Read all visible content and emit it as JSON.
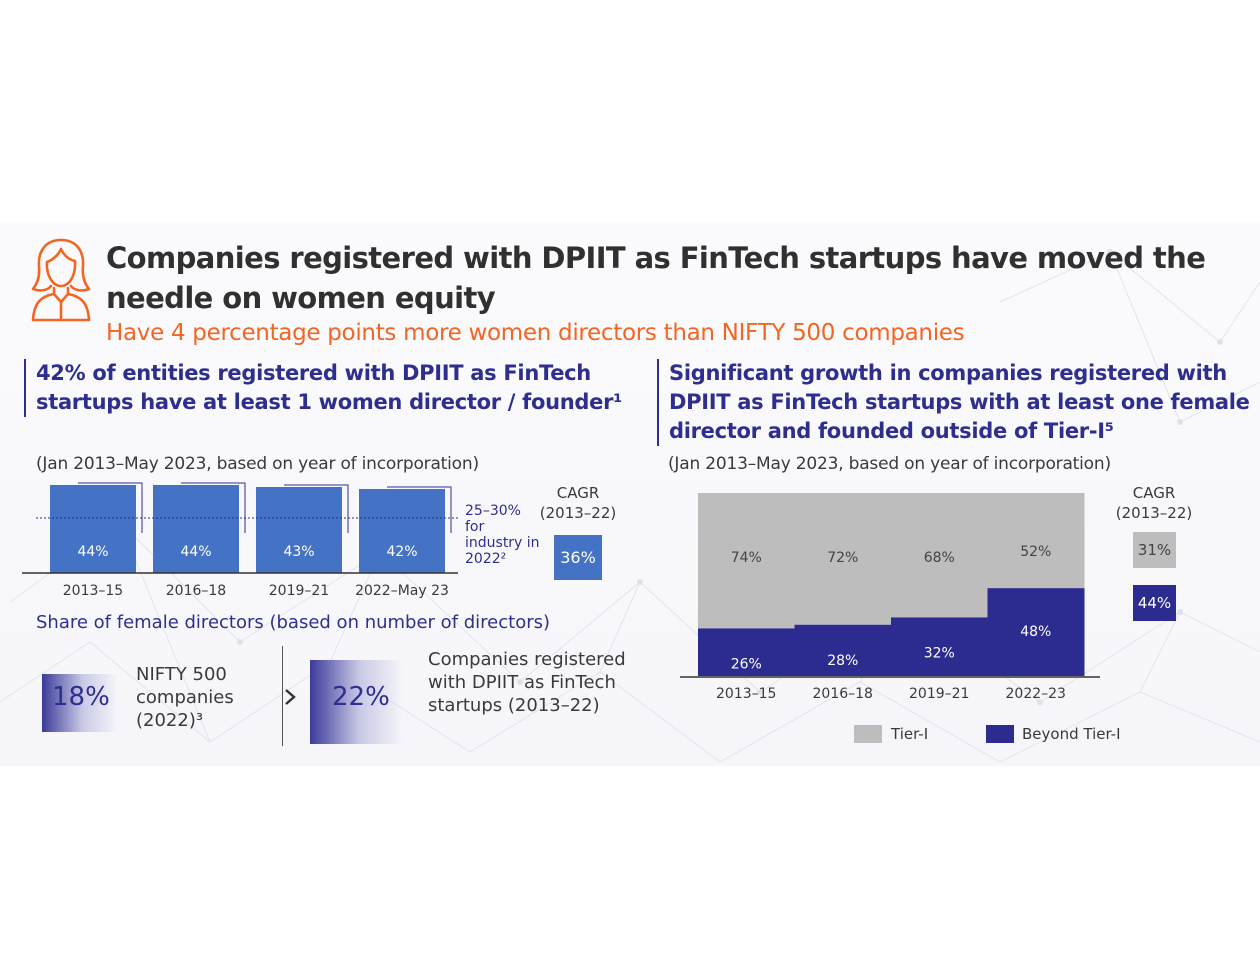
{
  "page": {
    "title": "Companies registered with DPIIT as FinTech startups have moved the needle on women equity",
    "subtitle": "Have 4 percentage points more women directors than NIFTY 500 companies",
    "icon": "woman-profile-icon"
  },
  "left_section": {
    "heading": "42% of entities registered with DPIIT as FinTech startups have at least 1 women director / founder¹",
    "note": "(Jan 2013–May 2023, based on year of incorporation)",
    "industry_note": "25–30% for industry in 2022²",
    "cagr_label_1": "CAGR",
    "cagr_label_2": "(2013–22)",
    "cagr_value": "36%",
    "share_title": "Share of female directors (based on number of directors)",
    "nifty_pct": "18%",
    "nifty_text": "NIFTY 500 companies (2022)³",
    "dpiit_pct": "22%",
    "dpiit_text": "Companies registered with DPIIT as FinTech startups (2013–22)"
  },
  "right_section": {
    "heading": "Significant growth in companies registered with DPIIT as FinTech startups with at least one female director and founded outside of Tier-I⁵",
    "note": "(Jan 2013–May 2023, based on year of incorporation)",
    "cagr_label_1": "CAGR",
    "cagr_label_2": "(2013–22)",
    "cagr_tier1": "31%",
    "cagr_beyond": "44%",
    "legend_tier1": "Tier-I",
    "legend_beyond": "Beyond Tier-I"
  },
  "colors": {
    "title": "#303030",
    "accent_orange": "#f26522",
    "navy": "#2e2e8f",
    "bar_blue": "#4472c4",
    "tier1_grey": "#bdbdbd",
    "beyond_navy": "#2b2b90"
  },
  "chart_data": [
    {
      "type": "bar",
      "categories": [
        "2013–15",
        "2016–18",
        "2019–21",
        "2022–May 23"
      ],
      "values": [
        44,
        44,
        43,
        42
      ],
      "labels": [
        "44%",
        "44%",
        "43%",
        "42%"
      ],
      "reference_line": 27.5,
      "ylim": [
        0,
        50
      ]
    },
    {
      "type": "bar",
      "stacked": true,
      "categories": [
        "2013–15",
        "2016–18",
        "2019–21",
        "2022–23"
      ],
      "series": [
        {
          "name": "Beyond Tier-I",
          "values": [
            26,
            28,
            32,
            48
          ],
          "labels": [
            "26%",
            "28%",
            "32%",
            "48%"
          ]
        },
        {
          "name": "Tier-I",
          "values": [
            74,
            72,
            68,
            52
          ],
          "labels": [
            "74%",
            "72%",
            "68%",
            "52%"
          ]
        }
      ],
      "ylim": [
        0,
        100
      ]
    }
  ]
}
